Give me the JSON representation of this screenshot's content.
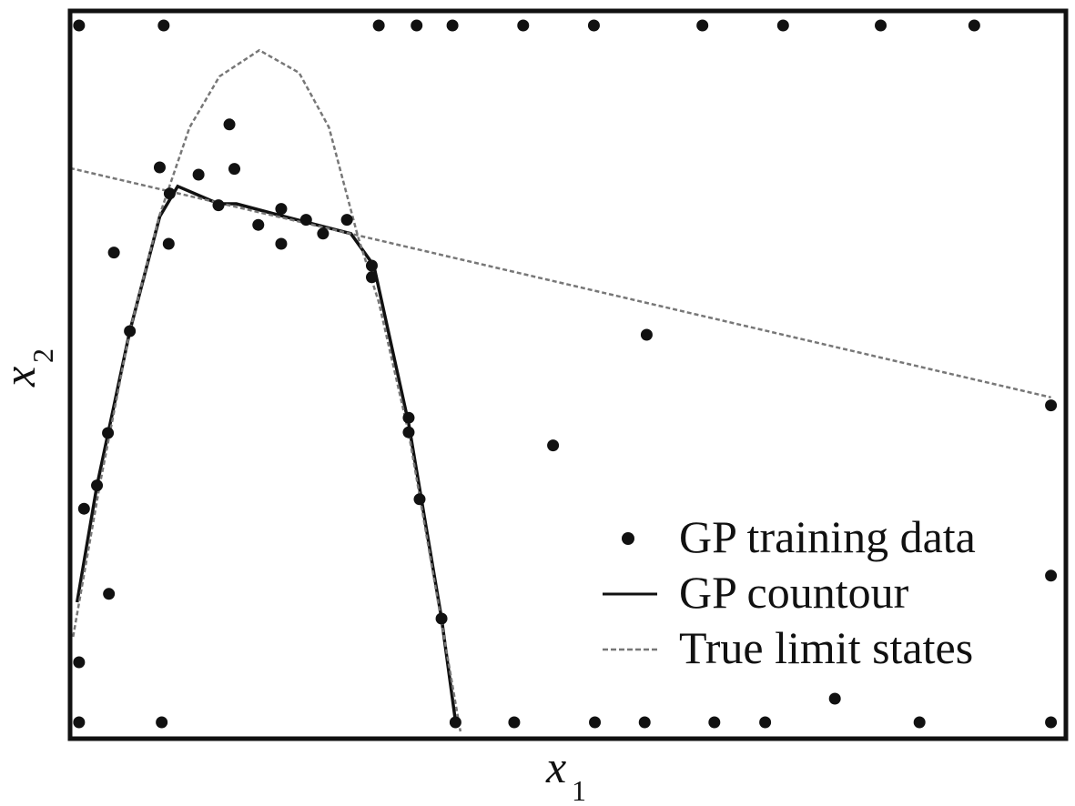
{
  "chart_data": {
    "type": "scatter",
    "xlabel": {
      "text": "x",
      "subscript": "1"
    },
    "ylabel": {
      "text": "x",
      "subscript": "2"
    },
    "xlim": [
      0,
      1
    ],
    "ylim": [
      0,
      1
    ],
    "legend": "lower right",
    "series": [
      {
        "name": "GP training data",
        "kind": "scatter",
        "color": "#111111",
        "x": [
          0.009,
          0.094,
          0.31,
          0.348,
          0.384,
          0.455,
          0.526,
          0.635,
          0.716,
          0.814,
          0.908,
          0.009,
          0.092,
          0.387,
          0.446,
          0.527,
          0.577,
          0.647,
          0.698,
          0.853,
          0.985,
          0.16,
          0.09,
          0.129,
          0.165,
          0.1,
          0.149,
          0.212,
          0.189,
          0.237,
          0.254,
          0.278,
          0.212,
          0.099,
          0.044,
          0.303,
          0.303,
          0.06,
          0.579,
          0.985,
          0.34,
          0.34,
          0.038,
          0.485,
          0.027,
          0.351,
          0.014,
          0.039,
          0.985,
          0.373,
          0.009,
          0.768
        ],
        "y": [
          0.98,
          0.98,
          0.98,
          0.98,
          0.98,
          0.98,
          0.98,
          0.98,
          0.98,
          0.98,
          0.98,
          0.0225,
          0.0225,
          0.0225,
          0.0225,
          0.0225,
          0.0225,
          0.0225,
          0.0225,
          0.0225,
          0.0225,
          0.844,
          0.785,
          0.775,
          0.783,
          0.749,
          0.733,
          0.728,
          0.706,
          0.713,
          0.694,
          0.713,
          0.68,
          0.68,
          0.668,
          0.65,
          0.634,
          0.56,
          0.555,
          0.458,
          0.441,
          0.421,
          0.42,
          0.403,
          0.348,
          0.329,
          0.316,
          0.199,
          0.224,
          0.165,
          0.105,
          0.055
        ]
      },
      {
        "name": "GP countour",
        "kind": "line",
        "color": "#111111",
        "dash": false,
        "x": [
          0.007,
          0.027,
          0.06,
          0.09,
          0.108,
          0.149,
          0.167,
          0.211,
          0.282,
          0.305,
          0.34,
          0.373,
          0.387
        ],
        "y": [
          0.1875,
          0.3475,
          0.56,
          0.7175,
          0.759,
          0.735,
          0.735,
          0.719,
          0.694,
          0.65,
          0.4325,
          0.165,
          0.024
        ]
      },
      {
        "name": "True limit states",
        "kind": "line",
        "color": "#777777",
        "dash": true,
        "x": [
          0.003,
          0.03,
          0.06,
          0.09,
          0.12,
          0.15,
          0.19,
          0.23,
          0.26,
          0.289,
          0.31,
          0.34,
          0.373,
          0.392,
          null,
          0,
          0.985
        ],
        "y": [
          0.14,
          0.35,
          0.56,
          0.72,
          0.84,
          0.91,
          0.946,
          0.915,
          0.84,
          0.69,
          0.6,
          0.42,
          0.16,
          0.01,
          null,
          0.784,
          0.469
        ]
      }
    ]
  }
}
